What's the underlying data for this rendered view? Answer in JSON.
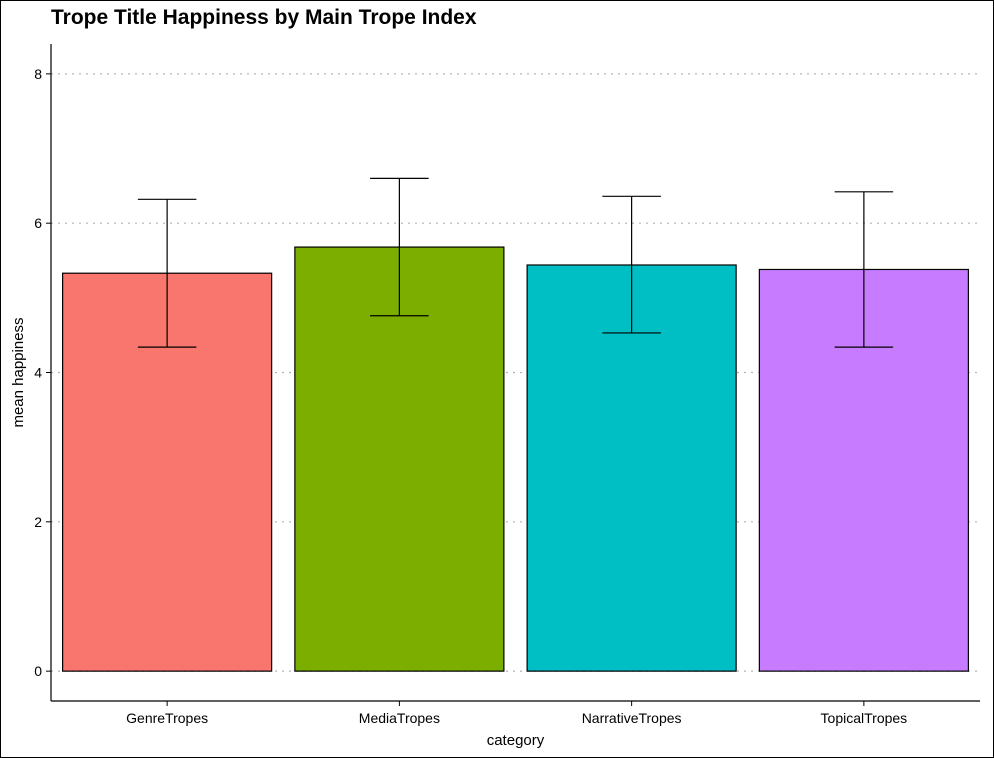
{
  "chart_data": {
    "type": "bar",
    "title": "Trope Title Happiness by Main Trope Index",
    "xlabel": "category",
    "ylabel": "mean happiness",
    "categories": [
      "GenreTropes",
      "MediaTropes",
      "NarrativeTropes",
      "TopicalTropes"
    ],
    "values": [
      5.33,
      5.68,
      5.44,
      5.38
    ],
    "error_low": [
      4.34,
      4.76,
      4.53,
      4.34
    ],
    "error_high": [
      6.32,
      6.6,
      6.36,
      6.42
    ],
    "colors": [
      "#F8766D",
      "#7CAE00",
      "#00BFC4",
      "#C77CFF"
    ],
    "ylim": [
      -0.4,
      8.4
    ],
    "yticks": [
      "0",
      "2",
      "4",
      "6",
      "8"
    ],
    "grid": "horizontal dotted",
    "legend": "none"
  }
}
